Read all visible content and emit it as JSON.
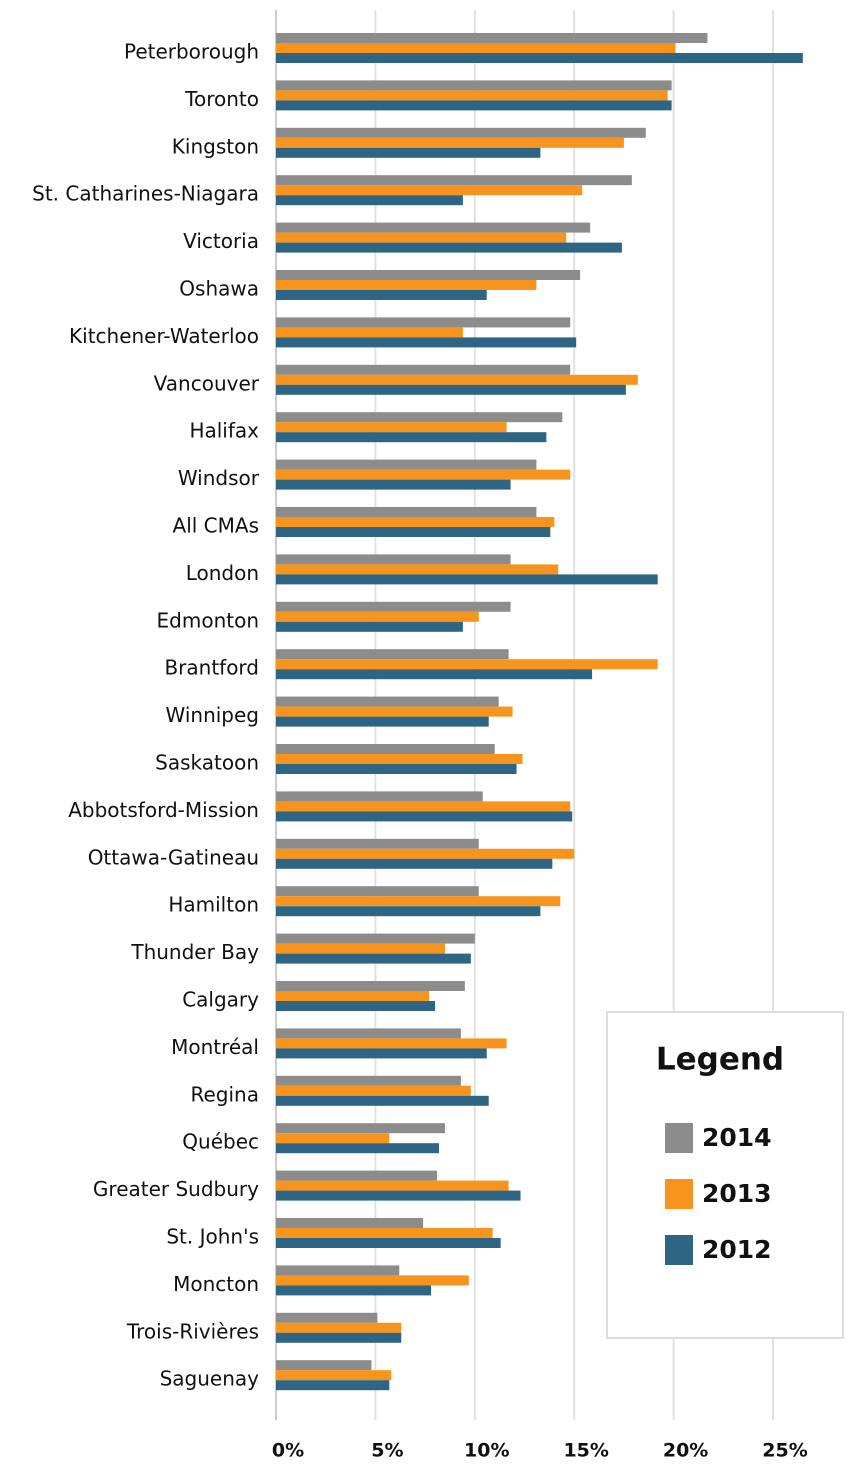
{
  "chart_data": {
    "type": "hbar",
    "legend_title": "Legend",
    "legend_position": "lower right",
    "categories": [
      "Peterborough",
      "Toronto",
      "Kingston",
      "St. Catharines-Niagara",
      "Victoria",
      "Oshawa",
      "Kitchener-Waterloo",
      "Vancouver",
      "Halifax",
      "Windsor",
      "All CMAs",
      "London",
      "Edmonton",
      "Brantford",
      "Winnipeg",
      "Saskatoon",
      "Abbotsford-Mission",
      "Ottawa-Gatineau",
      "Hamilton",
      "Thunder Bay",
      "Calgary",
      "Montréal",
      "Regina",
      "Québec",
      "Greater Sudbury",
      "St. John's",
      "Moncton",
      "Trois-Rivières",
      "Saguenay"
    ],
    "series": [
      {
        "name": "2014",
        "color": "#8c8c8c",
        "values": [
          21.7,
          19.9,
          18.6,
          17.9,
          15.8,
          15.3,
          14.8,
          14.8,
          14.4,
          13.1,
          13.1,
          11.8,
          11.8,
          11.7,
          11.2,
          11.0,
          10.4,
          10.2,
          10.2,
          10.0,
          9.5,
          9.3,
          9.3,
          8.5,
          8.1,
          7.4,
          6.2,
          5.1,
          4.8
        ]
      },
      {
        "name": "2013",
        "color": "#f7941d",
        "values": [
          20.1,
          19.7,
          17.5,
          15.4,
          14.6,
          13.1,
          9.4,
          18.2,
          11.6,
          14.8,
          14.0,
          14.2,
          10.2,
          19.2,
          11.9,
          12.4,
          14.8,
          15.0,
          14.3,
          8.5,
          7.7,
          11.6,
          9.8,
          5.7,
          11.7,
          10.9,
          9.7,
          6.3,
          5.8
        ]
      },
      {
        "name": "2012",
        "color": "#2e6584",
        "values": [
          26.5,
          19.9,
          13.3,
          9.4,
          17.4,
          10.6,
          15.1,
          17.6,
          13.6,
          11.8,
          13.8,
          19.2,
          9.4,
          15.9,
          10.7,
          12.1,
          14.9,
          13.9,
          13.3,
          9.8,
          8.0,
          10.6,
          10.7,
          8.2,
          12.3,
          11.3,
          7.8,
          6.3,
          5.7
        ]
      }
    ],
    "xlim": [
      0,
      28.5
    ],
    "xticks": [
      {
        "value": 0,
        "label": "0%"
      },
      {
        "value": 5,
        "label": "5%"
      },
      {
        "value": 10,
        "label": "10%"
      },
      {
        "value": 15,
        "label": "15%"
      },
      {
        "value": 20,
        "label": "20%"
      },
      {
        "value": 25,
        "label": "25%"
      }
    ],
    "grid": true
  }
}
